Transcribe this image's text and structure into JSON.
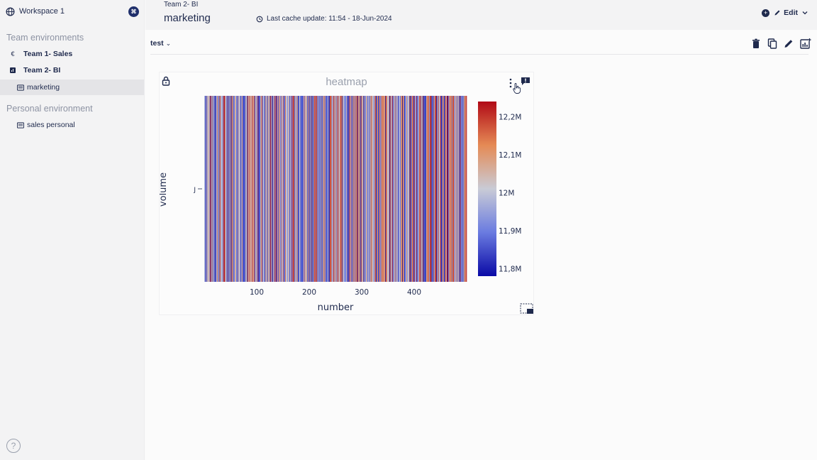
{
  "sidebar": {
    "workspace": {
      "label": "Workspace 1",
      "badge": "⌘"
    },
    "team_section": "Team environments",
    "team_items": [
      {
        "label": "Team 1- Sales",
        "icon": "euro-icon"
      },
      {
        "label": "Team 2- BI",
        "icon": "chart-box-icon"
      },
      {
        "label": "marketing",
        "icon": "dashboard-icon",
        "active": true
      }
    ],
    "personal_section": "Personal environment",
    "personal_items": [
      {
        "label": "sales personal",
        "icon": "dashboard-icon"
      }
    ],
    "help": "?"
  },
  "header": {
    "breadcrumb": "Team 2- BI",
    "title": "marketing",
    "cache_text": "Last cache update: 11:54 - 18-Jun-2024",
    "edit_label": "Edit"
  },
  "dashboard": {
    "tab_label": "test",
    "tab_chevron": "⌄"
  },
  "colors": {
    "accent": "#1f2a4d",
    "low": "#0a0aa6",
    "mid": "#c9cbd6",
    "high": "#b10a16"
  },
  "chart_data": {
    "type": "heatmap",
    "title": "heatmap",
    "xlabel": "number",
    "ylabel": "volume",
    "y_categories": [
      "J"
    ],
    "x_ticks": [
      100,
      200,
      300,
      400
    ],
    "xlim": [
      0,
      500
    ],
    "n_columns": 500,
    "colorbar": {
      "min": 11780000,
      "max": 12240000,
      "ticks": [
        "12,2M",
        "12,1M",
        "12M",
        "11,9M",
        "11,8M"
      ],
      "tick_values": [
        12200000,
        12100000,
        12000000,
        11900000,
        11800000
      ]
    }
  }
}
